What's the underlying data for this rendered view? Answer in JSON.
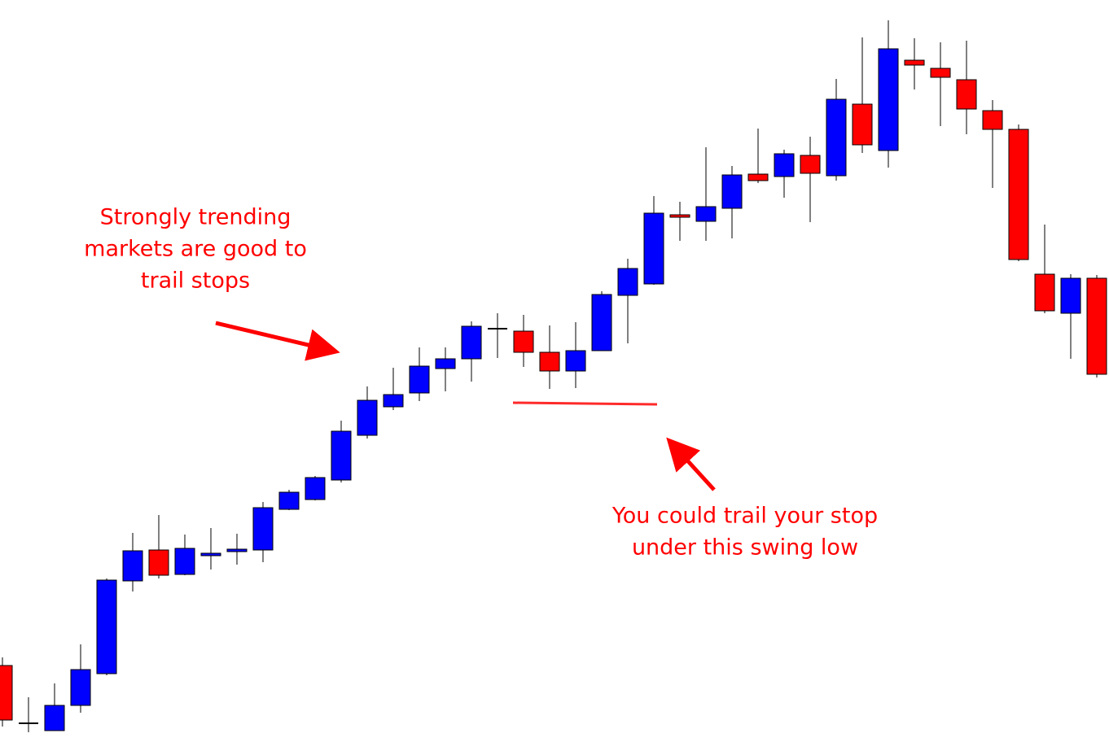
{
  "chart_data": {
    "type": "candlestick",
    "ylim": [
      0,
      912
    ],
    "up_color": "#0000ff",
    "down_color": "#ff0000",
    "doji_color": "#000000",
    "open": [
      94,
      23,
      14,
      45,
      84,
      198,
      236,
      206,
      229,
      234,
      236,
      286,
      298,
      322,
      377,
      412,
      429,
      459,
      471,
      508,
      505,
      479,
      456,
      481,
      549,
      563,
      648,
      640,
      656,
      698,
      695,
      721,
      696,
      784,
      727,
      838,
      828,
      814,
      776,
      753,
      575,
      527,
      570
    ],
    "high": [
      104,
      55,
      72,
      120,
      201,
      257,
      279,
      255,
      263,
      256,
      295,
      310,
      327,
      395,
      437,
      460,
      485,
      485,
      517,
      527,
      525,
      512,
      516,
      554,
      594,
      671,
      664,
      731,
      708,
      754,
      728,
      744,
      815,
      866,
      887,
      865,
      860,
      862,
      789,
      759,
      636,
      575,
      574
    ],
    "low": [
      19,
      12,
      14,
      36,
      82,
      185,
      201,
      205,
      212,
      218,
      221,
      285,
      297,
      319,
      373,
      408,
      419,
      431,
      443,
      472,
      461,
      434,
      435,
      481,
      490,
      562,
      616,
      616,
      619,
      687,
      669,
      639,
      690,
      724,
      706,
      802,
      757,
      747,
      681,
      591,
      527,
      471,
      448
    ],
    "close": [
      27,
      23,
      45,
      89,
      199,
      235,
      205,
      238,
      232,
      237,
      288,
      307,
      325,
      382,
      420,
      427,
      462,
      471,
      511,
      508,
      479,
      456,
      481,
      550,
      582,
      650,
      645,
      658,
      697,
      690,
      723,
      699,
      790,
      734,
      852,
      832,
      817,
      778,
      753,
      593,
      530,
      570,
      452
    ],
    "annotations": [
      {
        "lines": [
          "Strongly trending",
          "markets are good to",
          "trail stops"
        ],
        "color": "#ff0000"
      },
      {
        "lines": [
          "You could trail your stop",
          "under this swing low"
        ],
        "color": "#ff0000"
      }
    ]
  }
}
